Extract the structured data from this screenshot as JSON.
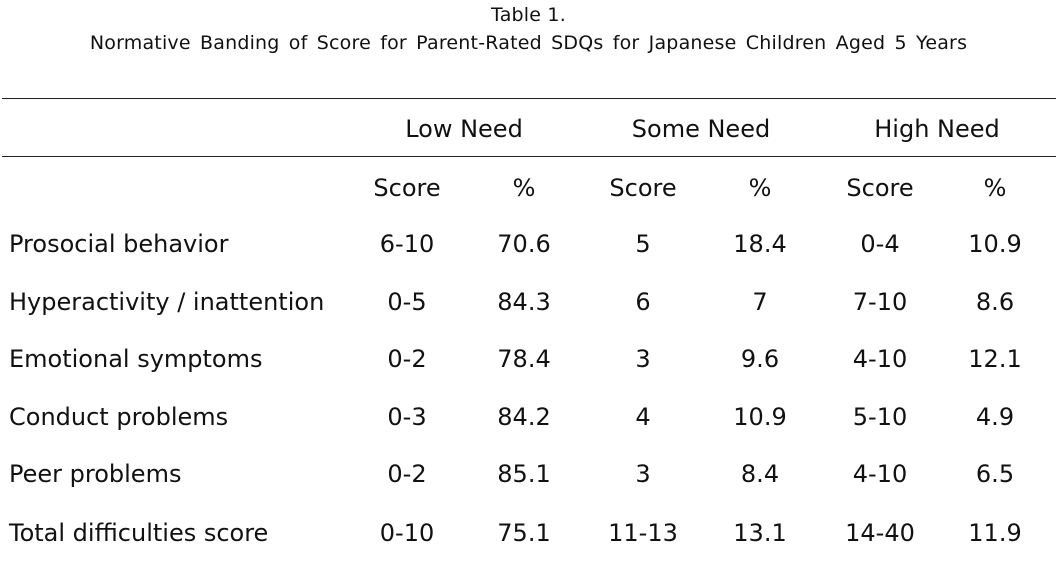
{
  "caption": {
    "number": "Table  1.",
    "title": "Normative  Banding  of Score  for Parent-Rated  SDQs for Japanese  Children Aged  5 Years"
  },
  "table": {
    "groups": [
      "Low Need",
      "Some Need",
      "High Need"
    ],
    "subheaders": [
      "Score",
      "%",
      "Score",
      "%",
      "Score",
      "%"
    ],
    "rows": [
      {
        "label": "Prosocial behavior",
        "cells": [
          "6-10",
          "70.6",
          "5",
          "18.4",
          "0-4",
          "10.9"
        ]
      },
      {
        "label": "Hyperactivity / inattention",
        "cells": [
          "0-5",
          "84.3",
          "6",
          "7",
          "7-10",
          "8.6"
        ]
      },
      {
        "label": "Emotional symptoms",
        "cells": [
          "0-2",
          "78.4",
          "3",
          "9.6",
          "4-10",
          "12.1"
        ]
      },
      {
        "label": "Conduct problems",
        "cells": [
          "0-3",
          "84.2",
          "4",
          "10.9",
          "5-10",
          "4.9"
        ]
      },
      {
        "label": "Peer problems",
        "cells": [
          "0-2",
          "85.1",
          "3",
          "8.4",
          "4-10",
          "6.5"
        ]
      },
      {
        "label": "Total difficulties score",
        "cells": [
          "0-10",
          "75.1",
          "11-13",
          "13.1",
          "14-40",
          "11.9"
        ]
      }
    ]
  }
}
